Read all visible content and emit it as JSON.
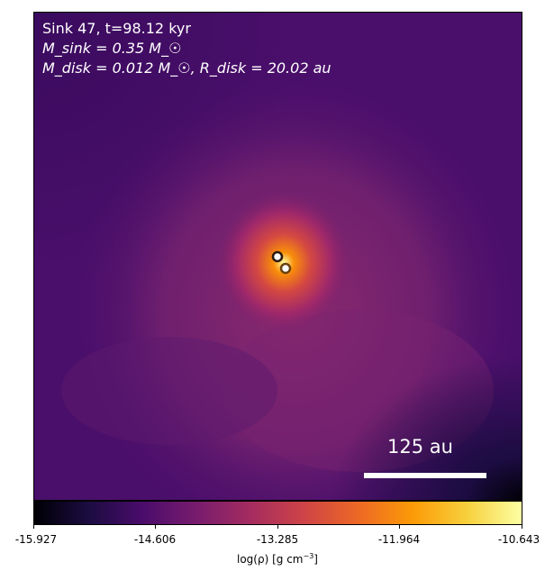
{
  "panel": {
    "title": "Sink 47, t=98.12 kyr",
    "m_sink": "M_sink = 0.35 M_☉",
    "m_disk": "M_disk = 0.012 M_☉, R_disk = 20.02 au"
  },
  "scale_bar": {
    "label": "125 au"
  },
  "colorbar": {
    "ticks": [
      "-15.927",
      "-14.606",
      "-13.285",
      "-11.964",
      "-10.643"
    ],
    "label_prefix": "log(ρ) [g cm",
    "label_exp": "−3",
    "label_suffix": "]",
    "colormap": "inferno"
  },
  "colors": {
    "background_map": "#4a0f6b",
    "core": "#fcffa4"
  }
}
